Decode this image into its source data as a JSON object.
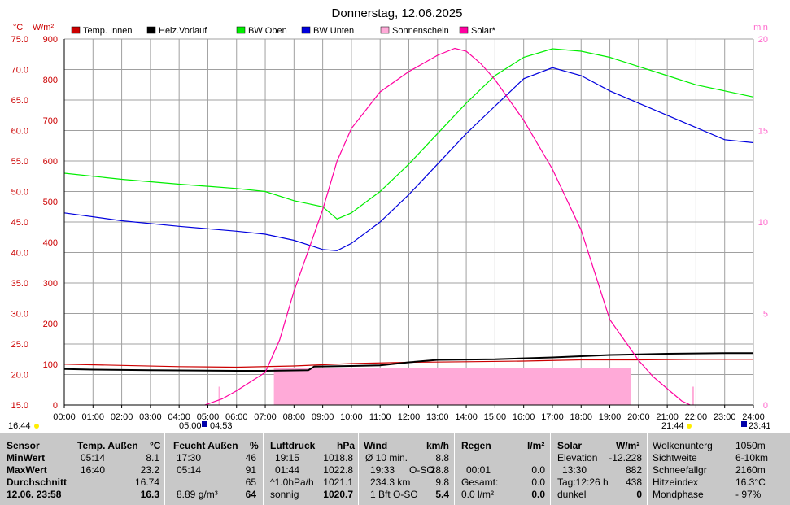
{
  "chart_data": {
    "type": "line",
    "title": "Donnerstag, 12.06.2025",
    "left_axis_unit_1": "°C",
    "left_axis_unit_2": "W/m²",
    "right_axis_unit": "min",
    "y_celsius_ticks": [
      "75.0",
      "70.0",
      "65.0",
      "60.0",
      "55.0",
      "50.0",
      "45.0",
      "40.0",
      "35.0",
      "30.0",
      "25.0",
      "20.0",
      "15.0"
    ],
    "y_solar_ticks": [
      "900",
      "800",
      "700",
      "600",
      "500",
      "400",
      "300",
      "200",
      "100",
      "0"
    ],
    "y_min_ticks": [
      "20",
      "15",
      "10",
      "5",
      "0"
    ],
    "x_ticks": [
      "00:00",
      "01:00",
      "02:00",
      "03:00",
      "04:00",
      "05:00",
      "06:00",
      "07:00",
      "08:00",
      "09:00",
      "10:00",
      "11:00",
      "12:00",
      "13:00",
      "14:00",
      "15:00",
      "16:00",
      "17:00",
      "18:00",
      "19:00",
      "20:00",
      "21:00",
      "22:00",
      "23:00",
      "24:00"
    ],
    "xlim_hours": [
      0,
      24
    ],
    "ylim_celsius": [
      15,
      75
    ],
    "ylim_wm2": [
      0,
      900
    ],
    "ylim_min": [
      0,
      20
    ],
    "grid": true,
    "legend_position": "top",
    "series": [
      {
        "name": "Temp. Innen",
        "color": "#cc0000",
        "axis": "celsius",
        "points": [
          [
            0,
            21.7
          ],
          [
            2,
            21.5
          ],
          [
            4,
            21.3
          ],
          [
            6,
            21.2
          ],
          [
            8,
            21.4
          ],
          [
            9,
            21.6
          ],
          [
            10,
            21.8
          ],
          [
            12,
            22.0
          ],
          [
            14,
            22.1
          ],
          [
            16,
            22.2
          ],
          [
            18,
            22.4
          ],
          [
            20,
            22.4
          ],
          [
            22,
            22.5
          ],
          [
            24,
            22.5
          ]
        ]
      },
      {
        "name": "Heiz.Vorlauf",
        "color": "#000000",
        "axis": "celsius",
        "points": [
          [
            0,
            20.9
          ],
          [
            1,
            20.8
          ],
          [
            3,
            20.7
          ],
          [
            6,
            20.6
          ],
          [
            7,
            20.6
          ],
          [
            8.5,
            20.7
          ],
          [
            8.7,
            21.3
          ],
          [
            10,
            21.4
          ],
          [
            11,
            21.5
          ],
          [
            12,
            22.0
          ],
          [
            13,
            22.4
          ],
          [
            15,
            22.5
          ],
          [
            17,
            22.8
          ],
          [
            19,
            23.2
          ],
          [
            21,
            23.4
          ],
          [
            23,
            23.5
          ],
          [
            24,
            23.5
          ]
        ]
      },
      {
        "name": "BW Oben",
        "color": "#00ee00",
        "axis": "celsius",
        "points": [
          [
            0,
            53.0
          ],
          [
            2,
            52.0
          ],
          [
            4,
            51.2
          ],
          [
            6,
            50.5
          ],
          [
            7,
            50.0
          ],
          [
            8,
            48.5
          ],
          [
            9,
            47.5
          ],
          [
            9.5,
            45.5
          ],
          [
            10,
            46.5
          ],
          [
            11,
            50.0
          ],
          [
            12,
            54.5
          ],
          [
            13,
            59.5
          ],
          [
            14,
            64.5
          ],
          [
            15,
            69.0
          ],
          [
            16,
            72.0
          ],
          [
            17,
            73.4
          ],
          [
            18,
            73.0
          ],
          [
            19,
            72.0
          ],
          [
            20,
            70.5
          ],
          [
            21,
            69.0
          ],
          [
            22,
            67.5
          ],
          [
            23,
            66.5
          ],
          [
            24,
            65.5
          ]
        ]
      },
      {
        "name": "BW Unten",
        "color": "#0000dd",
        "axis": "celsius",
        "points": [
          [
            0,
            46.5
          ],
          [
            2,
            45.2
          ],
          [
            4,
            44.3
          ],
          [
            6,
            43.5
          ],
          [
            7,
            43.0
          ],
          [
            8,
            42.0
          ],
          [
            9,
            40.5
          ],
          [
            9.5,
            40.3
          ],
          [
            10,
            41.5
          ],
          [
            11,
            45.0
          ],
          [
            12,
            49.5
          ],
          [
            13,
            54.5
          ],
          [
            14,
            59.5
          ],
          [
            15,
            64.0
          ],
          [
            16,
            68.5
          ],
          [
            17,
            70.3
          ],
          [
            18,
            69.0
          ],
          [
            19,
            66.5
          ],
          [
            20,
            64.5
          ],
          [
            21,
            62.5
          ],
          [
            22,
            60.5
          ],
          [
            23,
            58.5
          ],
          [
            24,
            58.0
          ]
        ]
      },
      {
        "name": "Sonnenschein",
        "color": "#ffaad8",
        "axis": "min",
        "style": "area",
        "blocks": [
          [
            7.3,
            19.75,
            2.0
          ]
        ],
        "ticks": [
          [
            5.4,
            1.0
          ],
          [
            8.6,
            1.5
          ],
          [
            10.6,
            1.5
          ],
          [
            12.0,
            1.2
          ],
          [
            13.9,
            1.5
          ],
          [
            15.9,
            1.2
          ],
          [
            17.9,
            1.5
          ],
          [
            21.9,
            1.0
          ]
        ]
      },
      {
        "name": "Solar*",
        "color": "#ff00a0",
        "axis": "wm2",
        "points": [
          [
            4.9,
            0
          ],
          [
            5.5,
            15
          ],
          [
            6,
            35
          ],
          [
            7,
            80
          ],
          [
            7.5,
            160
          ],
          [
            8,
            280
          ],
          [
            8.5,
            380
          ],
          [
            9,
            480
          ],
          [
            9.5,
            600
          ],
          [
            10,
            680
          ],
          [
            11,
            770
          ],
          [
            12,
            820
          ],
          [
            13,
            860
          ],
          [
            13.6,
            877
          ],
          [
            14,
            870
          ],
          [
            14.5,
            840
          ],
          [
            15,
            800
          ],
          [
            16,
            700
          ],
          [
            17,
            580
          ],
          [
            18,
            430
          ],
          [
            19,
            210
          ],
          [
            20,
            110
          ],
          [
            20.5,
            70
          ],
          [
            21,
            40
          ],
          [
            21.5,
            10
          ],
          [
            21.8,
            0
          ]
        ]
      }
    ]
  },
  "markers": {
    "sunrise_left": "16:44",
    "sunrise_mid": "05:00",
    "sunrise_mid2": "04:53",
    "sunset_mid": "21:44",
    "sunset_right": "23:41"
  },
  "panel": {
    "sensor": {
      "header": "Sensor",
      "rows": [
        "MinWert",
        "MaxWert",
        "Durchschnitt",
        "12.06. 23:58"
      ]
    },
    "temp": {
      "header": "Temp. Außen",
      "unit": "°C",
      "rows": [
        [
          "05:14",
          "8.1"
        ],
        [
          "16:40",
          "23.2"
        ],
        [
          "",
          "16.74"
        ],
        [
          "",
          "16.3"
        ]
      ]
    },
    "feucht": {
      "header": "Feucht Außen",
      "unit": "%",
      "rows": [
        [
          "17:30",
          "46"
        ],
        [
          "05:14",
          "91"
        ],
        [
          "",
          "65"
        ],
        [
          "8.89 g/m³",
          "64"
        ]
      ]
    },
    "luft": {
      "header": "Luftdruck",
      "unit": "hPa",
      "rows": [
        [
          "19:15",
          "1018.8"
        ],
        [
          "01:44",
          "1022.8"
        ],
        [
          "^1.0hPa/h",
          "1021.1"
        ],
        [
          "sonnig",
          "1020.7"
        ]
      ]
    },
    "wind": {
      "header": "Wind",
      "unit": "km/h",
      "rows": [
        [
          "Ø 10 min.",
          "",
          "8.8"
        ],
        [
          "19:33",
          "O-SO",
          "28.8"
        ],
        [
          "234.3 km",
          "",
          "9.8"
        ],
        [
          "1 Bft O-SO",
          "",
          "5.4"
        ]
      ]
    },
    "regen": {
      "header": "Regen",
      "unit": "l/m²",
      "rows": [
        [
          "",
          "",
          ""
        ],
        [
          "00:01",
          "0.0"
        ],
        [
          "Gesamt:",
          "0.0"
        ],
        [
          "0.0 l/m²",
          "0.0"
        ]
      ]
    },
    "solar": {
      "header": "Solar",
      "unit": "W/m²",
      "rows": [
        [
          "Elevation",
          "-12.228"
        ],
        [
          "13:30",
          "882"
        ],
        [
          "Tag:12:26 h",
          "438"
        ],
        [
          "dunkel",
          "0"
        ]
      ]
    },
    "misc": {
      "rows": [
        [
          "Wolkenunterg",
          "1050m"
        ],
        [
          "Sichtweite",
          "6-10km"
        ],
        [
          "Schneefallgr",
          "2160m"
        ],
        [
          "Hitzeindex",
          "16.3°C"
        ],
        [
          "Mondphase",
          "- 97%"
        ]
      ]
    }
  }
}
